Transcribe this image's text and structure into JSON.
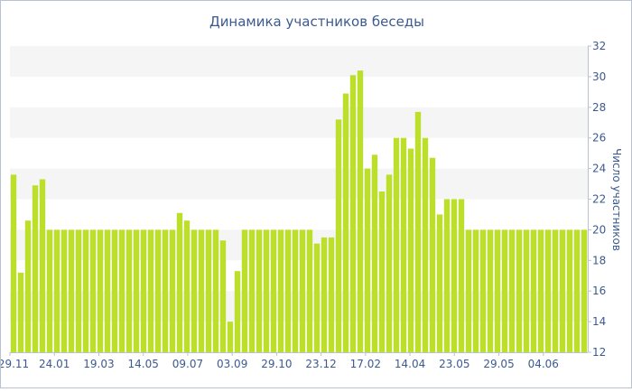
{
  "chart_data": {
    "type": "bar",
    "title": "Динамика участников беседы",
    "ylabel": "Число участников",
    "xlabel": "",
    "ylim": [
      12,
      32
    ],
    "yticks": [
      "12",
      "14",
      "16",
      "18",
      "20",
      "22",
      "24",
      "26",
      "28",
      "30",
      "32"
    ],
    "x_tick_labels": [
      "29.11",
      "24.01",
      "19.03",
      "14.05",
      "09.07",
      "03.09",
      "29.10",
      "23.12",
      "17.02",
      "14.04",
      "23.05",
      "29.05",
      "04.06"
    ],
    "grid": "alternating horizontal bands",
    "colors": {
      "bar": "#bcdf2c",
      "band": "#f5f5f5",
      "text": "#3b5a8f",
      "axis": "#b8c2d0"
    },
    "values": [
      23.6,
      17.2,
      20.6,
      22.9,
      23.3,
      20,
      20,
      20,
      20,
      20,
      20,
      20,
      20,
      20,
      20,
      20,
      20,
      20,
      20,
      20,
      20,
      20,
      20,
      21.1,
      20.6,
      20,
      20,
      20,
      20,
      19.3,
      14,
      17.3,
      20,
      20,
      20,
      20,
      20,
      20,
      20,
      20,
      20,
      20,
      19.1,
      19.5,
      19.5,
      27.2,
      28.9,
      30.1,
      30.4,
      24,
      24.9,
      22.5,
      23.6,
      26,
      26,
      25.3,
      27.7,
      26,
      24.7,
      21,
      22,
      22,
      22,
      20,
      20,
      20,
      20,
      20,
      20,
      20,
      20,
      20,
      20,
      20,
      20,
      20,
      20,
      20,
      20,
      20
    ]
  }
}
